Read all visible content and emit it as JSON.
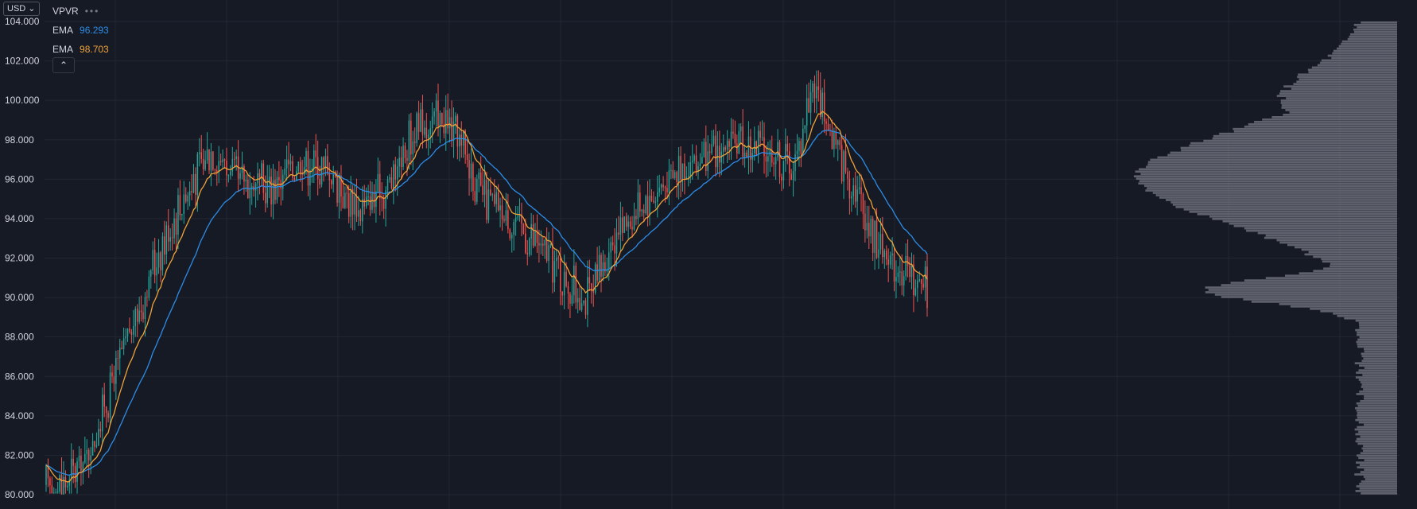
{
  "currency": {
    "label": "USD",
    "chevron_icon": "chevron-down-icon"
  },
  "legend": {
    "indicator": "VPVR",
    "more_icon": "more-dots-icon",
    "ema1": {
      "label": "EMA",
      "value": "96.293",
      "color": "#2c8ce6"
    },
    "ema2": {
      "label": "EMA",
      "value": "98.703",
      "color": "#f0a237"
    },
    "collapse_icon": "chevron-up-icon"
  },
  "colors": {
    "background": "#161a25",
    "grid": "#232733",
    "up": "#26a69a",
    "down": "#ef5350",
    "ema_slow": "#2c8ce6",
    "ema_fast": "#f0a237",
    "volume_profile": "#787b86"
  },
  "chart_data": {
    "type": "candlestick",
    "title": "",
    "xlabel": "",
    "ylabel": "",
    "ylim": [
      80,
      104
    ],
    "y_ticks": [
      "80.000",
      "82.000",
      "84.000",
      "86.000",
      "88.000",
      "90.000",
      "92.000",
      "94.000",
      "96.000",
      "98.000",
      "100.000",
      "102.000",
      "104.000"
    ],
    "grid": true,
    "num_candles": 455,
    "price_path_keypoints": [
      [
        0,
        80.5
      ],
      [
        10,
        80.6
      ],
      [
        22,
        82.0
      ],
      [
        35,
        86.0
      ],
      [
        45,
        88.5
      ],
      [
        55,
        91.5
      ],
      [
        70,
        95.0
      ],
      [
        85,
        97.5
      ],
      [
        100,
        96.0
      ],
      [
        115,
        95.5
      ],
      [
        130,
        97.0
      ],
      [
        145,
        96.5
      ],
      [
        160,
        94.5
      ],
      [
        175,
        95.5
      ],
      [
        190,
        98.5
      ],
      [
        205,
        99.0
      ],
      [
        215,
        97.5
      ],
      [
        225,
        95.0
      ],
      [
        240,
        94.0
      ],
      [
        255,
        92.5
      ],
      [
        270,
        90.5
      ],
      [
        280,
        90.0
      ],
      [
        295,
        93.5
      ],
      [
        310,
        95.0
      ],
      [
        325,
        96.5
      ],
      [
        340,
        97.0
      ],
      [
        355,
        97.8
      ],
      [
        370,
        97.5
      ],
      [
        385,
        96.5
      ],
      [
        395,
        101.0
      ],
      [
        405,
        98.0
      ],
      [
        415,
        96.0
      ],
      [
        425,
        93.5
      ],
      [
        435,
        92.0
      ],
      [
        445,
        91.0
      ],
      [
        455,
        90.5
      ]
    ],
    "ema_fast_last": 98.703,
    "ema_slow_last": 96.293,
    "volume_profile": {
      "type": "horizontal-histogram",
      "peak_price": 96.0,
      "secondary_peak_price": 90.3
    }
  }
}
